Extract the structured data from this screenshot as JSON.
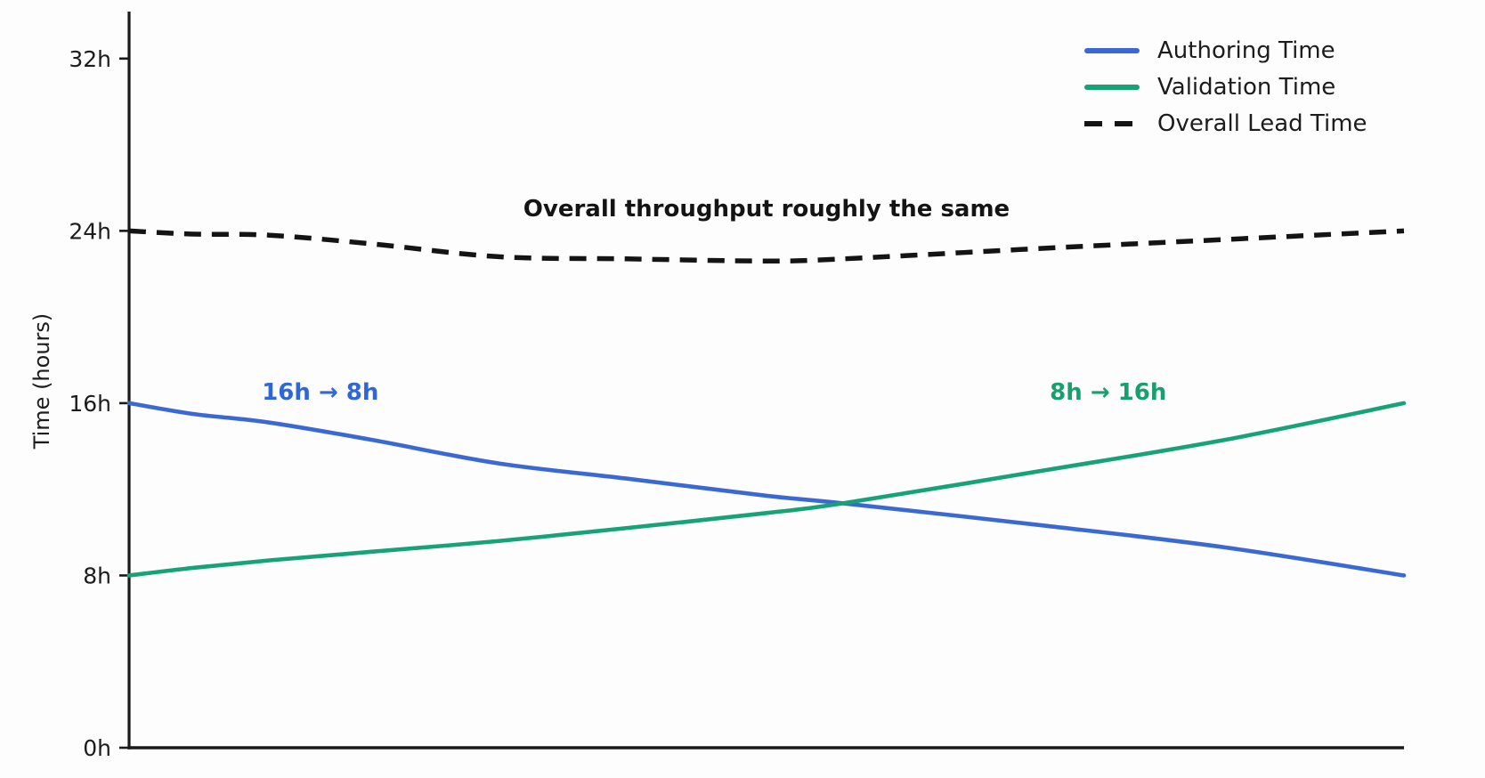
{
  "figure": {
    "background": "#fdfdfe",
    "axis_color": "#1a1a1a",
    "text_color": "#1c1c1c"
  },
  "chart_data": {
    "type": "line",
    "title": "",
    "xlabel": "",
    "ylabel": "Time (hours)",
    "ylim": [
      0,
      34.1
    ],
    "xlim": [
      0,
      1
    ],
    "grid": false,
    "x_tick_labels": [],
    "legend_position": "upper right",
    "yticks": [
      {
        "value": 0,
        "label": "0h"
      },
      {
        "value": 8,
        "label": "8h"
      },
      {
        "value": 16,
        "label": "16h"
      },
      {
        "value": 24,
        "label": "24h"
      },
      {
        "value": 32,
        "label": "32h"
      }
    ],
    "x": [
      0,
      0.05,
      0.11,
      0.19,
      0.29,
      0.39,
      0.5,
      0.56,
      0.72,
      0.86,
      1
    ],
    "series": [
      {
        "name": "Authoring Time",
        "color": "#3b69d4",
        "line_style": "solid",
        "values": [
          16,
          15.5,
          15.1,
          14.3,
          13.2,
          12.5,
          11.7,
          11.35,
          10.3,
          9.3,
          8
        ]
      },
      {
        "name": "Validation Time",
        "color": "#17a377",
        "line_style": "solid",
        "values": [
          8,
          8.35,
          8.7,
          9.1,
          9.6,
          10.2,
          10.9,
          11.35,
          12.9,
          14.3,
          16
        ]
      },
      {
        "name": "Overall Lead Time",
        "color": "#141414",
        "line_style": "dashed",
        "values": [
          24,
          23.85,
          23.8,
          23.4,
          22.8,
          22.7,
          22.6,
          22.7,
          23.2,
          23.6,
          24
        ]
      }
    ],
    "annotations": [
      {
        "text": "Overall throughput roughly the same",
        "color": "#141414",
        "x": 0.5,
        "y": 25.0
      },
      {
        "text": "16h → 8h",
        "color": "#2f67d8",
        "x": 0.15,
        "y": 16.5
      },
      {
        "text": "8h → 16h",
        "color": "#17a06e",
        "x": 0.768,
        "y": 16.5
      }
    ]
  }
}
